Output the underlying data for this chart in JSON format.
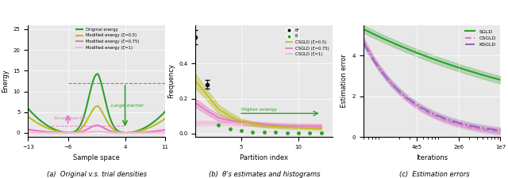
{
  "fig_width": 6.4,
  "fig_height": 2.25,
  "panel_bg": "#e8e8e8",
  "panel_a": {
    "xlabel": "Sample space",
    "ylabel": "Energy",
    "xlim": [
      -13,
      11
    ],
    "ylim": [
      -1,
      26
    ],
    "xticks": [
      -13,
      -6,
      4,
      11
    ],
    "yticks": [
      0,
      5,
      10,
      15,
      20,
      25
    ],
    "colors": {
      "original": "#2ca02c",
      "zeta05": "#bcbd22",
      "zeta075": "#e377c2",
      "zeta1": "#f7b6d2"
    },
    "legend": [
      "Original energy",
      "Modified energy (ζ=0.5)",
      "Modified energy (ζ=0.75)",
      "Modified energy (ζ=1)"
    ]
  },
  "panel_b": {
    "xlabel": "Partition index",
    "ylabel": "Frequency",
    "xlim": [
      1,
      13
    ],
    "ylim": [
      -0.02,
      0.62
    ],
    "xticks": [
      5,
      10
    ],
    "yticks": [
      0.0,
      0.2,
      0.4
    ],
    "colors": {
      "theta_star": "#111111",
      "theta": "#2ca02c",
      "csgld05": "#bcbd22",
      "csgld075": "#e377c2",
      "csgld1": "#f7b6d2"
    },
    "legend": [
      "θ*",
      "θ",
      "CSGLD (ζ=0.5)",
      "CSGLD (ζ=0.75)",
      "CSGLD (ζ=1)"
    ],
    "arrow_label": "Higher energy",
    "arrow_color": "#2ca02c"
  },
  "panel_c": {
    "xlabel": "Iterations",
    "ylabel": "Estimation error",
    "xlim": [
      50000,
      10000000
    ],
    "ylim": [
      0,
      5.5
    ],
    "xticks": [
      400000,
      2000000,
      10000000
    ],
    "xticklabels": [
      "4e5",
      "2e6",
      "1e7"
    ],
    "yticks": [
      0,
      2,
      4
    ],
    "colors": {
      "sgld": "#2ca02c",
      "csgld": "#e377c2",
      "ksgld": "#9467bd"
    },
    "legend": [
      "SGLD",
      "CSGLD",
      "KSGLD"
    ]
  }
}
